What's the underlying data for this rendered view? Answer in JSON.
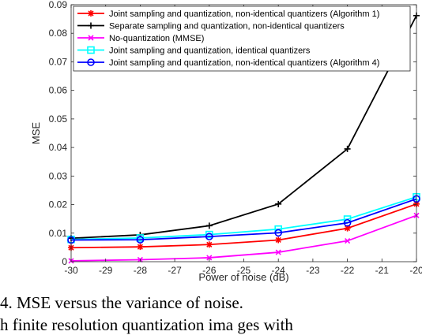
{
  "chart_data": {
    "type": "line",
    "xlabel": "Power of noise (dB)",
    "ylabel": "MSE",
    "xlim": [
      -30,
      -20
    ],
    "ylim": [
      0,
      0.09
    ],
    "xticks": [
      "-30",
      "-29",
      "-28",
      "-27",
      "-26",
      "-25",
      "-24",
      "-23",
      "-22",
      "-21",
      "-20"
    ],
    "yticks": [
      "0",
      "0.01",
      "0.02",
      "0.03",
      "0.04",
      "0.05",
      "0.06",
      "0.07",
      "0.08",
      "0.09"
    ],
    "grid": false,
    "legend_position": "top-left",
    "x": [
      -30,
      -28,
      -26,
      -24,
      -22,
      -20
    ],
    "series": [
      {
        "name": "Joint sampling and quantization, non-identical quantizers (Algorithm 1)",
        "color": "#ff0000",
        "marker": "asterisk",
        "values": [
          0.0049,
          0.0052,
          0.006,
          0.0076,
          0.0117,
          0.0202
        ]
      },
      {
        "name": "Separate sampling and quantization, non-identical quantizers",
        "color": "#000000",
        "marker": "plus",
        "values": [
          0.0082,
          0.0094,
          0.0126,
          0.0202,
          0.0395,
          0.0862
        ]
      },
      {
        "name": "No-quantization (MMSE)",
        "color": "#ff00ff",
        "marker": "x",
        "values": [
          0.0003,
          0.0007,
          0.0014,
          0.0033,
          0.0073,
          0.0162
        ]
      },
      {
        "name": "Joint sampling and quantization, identical quantizers",
        "color": "#00ffff",
        "marker": "square",
        "values": [
          0.0078,
          0.0083,
          0.0095,
          0.0114,
          0.0149,
          0.0227
        ]
      },
      {
        "name": "Joint sampling and quantization, non-identical quantizers (Algorithm 4)",
        "color": "#0000ff",
        "marker": "circle",
        "values": [
          0.0076,
          0.0077,
          0.0088,
          0.0101,
          0.0136,
          0.022
        ]
      }
    ]
  },
  "caption": {
    "line1": "4.  MSE versus the variance of noise.",
    "line2": "h   finite   resolution   quantization   ima ges   with"
  }
}
